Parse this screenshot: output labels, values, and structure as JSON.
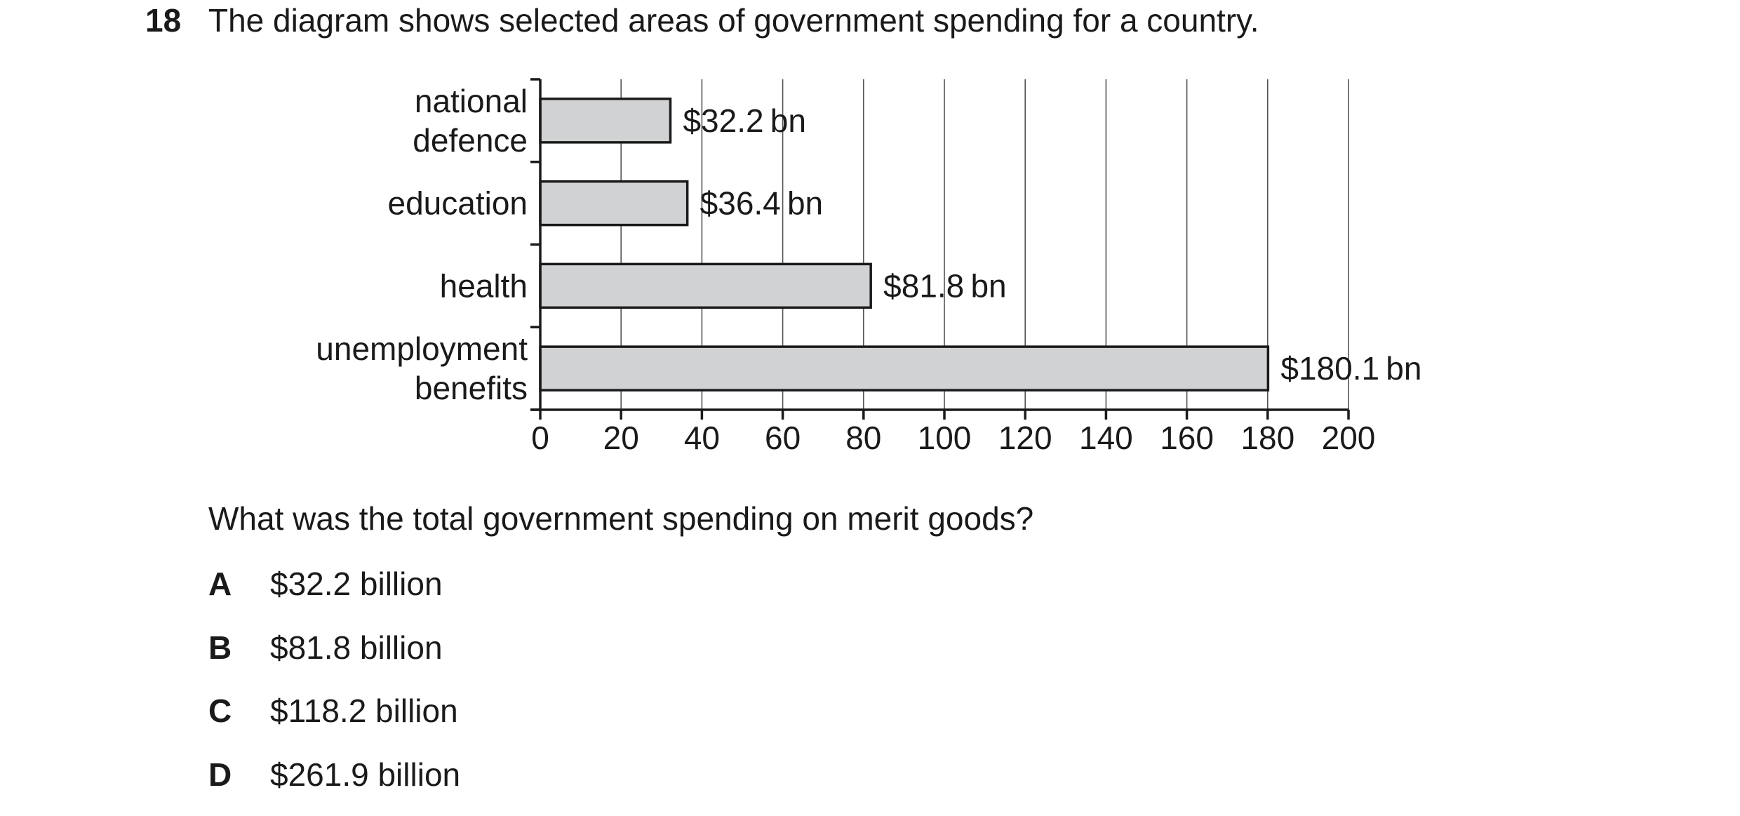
{
  "question": {
    "number": "18",
    "text": "The diagram shows selected areas of government spending for a country.",
    "prompt": "What was the total government spending on merit goods?",
    "options": [
      {
        "letter": "A",
        "text": "$32.2 billion"
      },
      {
        "letter": "B",
        "text": "$81.8 billion"
      },
      {
        "letter": "C",
        "text": "$118.2 billion"
      },
      {
        "letter": "D",
        "text": "$261.9 billion"
      }
    ]
  },
  "chart_data": {
    "type": "bar",
    "orientation": "horizontal",
    "categories": [
      [
        "national",
        "defence"
      ],
      [
        "education"
      ],
      [
        "health"
      ],
      [
        "unemployment",
        "benefits"
      ]
    ],
    "values": [
      32.2,
      36.4,
      81.8,
      180.1
    ],
    "data_labels": [
      "$32.2 bn",
      "$36.4 bn",
      "$81.8 bn",
      "$180.1 bn"
    ],
    "xticks": [
      0,
      20,
      40,
      60,
      80,
      100,
      120,
      140,
      160,
      180,
      200
    ],
    "xlim": [
      0,
      200
    ],
    "grid": "vertical",
    "bar_color": "#d1d2d4",
    "title": "",
    "xlabel": "",
    "ylabel": ""
  }
}
